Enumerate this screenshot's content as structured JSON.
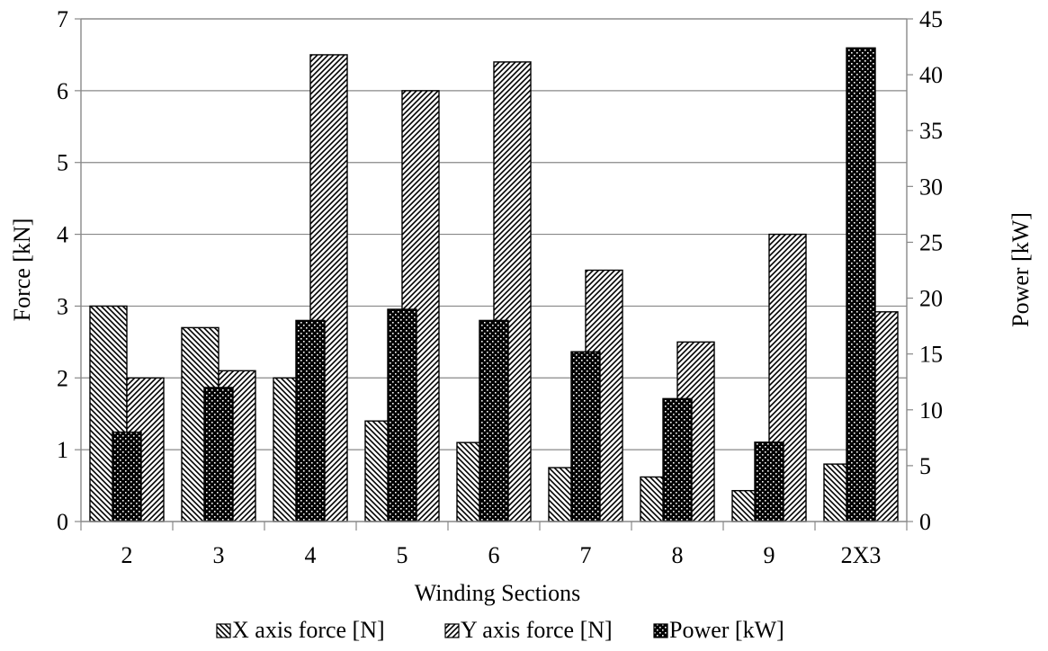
{
  "chart_data": {
    "type": "bar",
    "categories": [
      "2",
      "3",
      "4",
      "5",
      "6",
      "7",
      "8",
      "9",
      "2X3"
    ],
    "series": [
      {
        "name": "X axis force [N]",
        "axis": "left",
        "pattern": "diag-back",
        "values": [
          3.0,
          2.7,
          2.0,
          1.4,
          1.1,
          0.75,
          0.62,
          0.43,
          0.8
        ]
      },
      {
        "name": "Power [kW]",
        "axis": "right",
        "pattern": "dots",
        "values": [
          8.0,
          12.0,
          18.0,
          19.0,
          18.0,
          15.2,
          11.0,
          7.1,
          42.4
        ]
      },
      {
        "name": "Y axis force [N]",
        "axis": "left",
        "pattern": "diag-fwd",
        "values": [
          2.0,
          2.1,
          6.5,
          6.0,
          6.4,
          3.5,
          2.5,
          4.0,
          2.92
        ]
      }
    ],
    "xlabel": "Winding Sections",
    "ylabel": "Force [kN]",
    "y2label": "Power [kW]",
    "ylim": [
      0,
      7
    ],
    "yticks": [
      "0",
      "1",
      "2",
      "3",
      "4",
      "5",
      "6",
      "7"
    ],
    "y2lim": [
      0,
      45
    ],
    "y2ticks": [
      "0",
      "5",
      "10",
      "15",
      "20",
      "25",
      "30",
      "35",
      "40",
      "45"
    ],
    "grid": true,
    "legend": "bottom",
    "legend_order": [
      "X axis force [N]",
      "Y axis force [N]",
      "Power [kW]"
    ]
  }
}
